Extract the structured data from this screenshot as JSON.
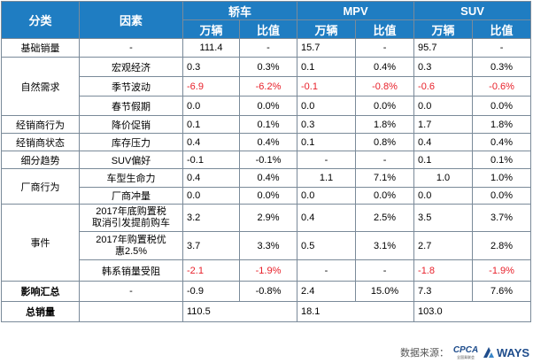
{
  "headers": {
    "category": "分类",
    "factor": "因素",
    "car": "轿车",
    "mpv": "MPV",
    "suv": "SUV",
    "sub_units": "万辆",
    "sub_ratio": "比值"
  },
  "rows": {
    "base": {
      "cat": "基础销量",
      "factor": "-",
      "car_u": "111.4",
      "car_r": "-",
      "mpv_u": "15.7",
      "mpv_r": "-",
      "suv_u": "95.7",
      "suv_r": "-"
    },
    "macro": {
      "factor": "宏观经济",
      "car_u": "0.3",
      "car_r": "0.3%",
      "mpv_u": "0.1",
      "mpv_r": "0.4%",
      "suv_u": "0.3",
      "suv_r": "0.3%"
    },
    "season": {
      "cat": "自然需求",
      "factor": "季节波动",
      "car_u": "-6.9",
      "car_r": "-6.2%",
      "mpv_u": "-0.1",
      "mpv_r": "-0.8%",
      "suv_u": "-0.6",
      "suv_r": "-0.6%"
    },
    "spring": {
      "factor": "春节假期",
      "car_u": "0.0",
      "car_r": "0.0%",
      "mpv_u": "0.0",
      "mpv_r": "0.0%",
      "suv_u": "0.0",
      "suv_r": "0.0%"
    },
    "promo": {
      "cat": "经销商行为",
      "factor": "降价促销",
      "car_u": "0.1",
      "car_r": "0.1%",
      "mpv_u": "0.3",
      "mpv_r": "1.8%",
      "suv_u": "1.7",
      "suv_r": "1.8%"
    },
    "inventory": {
      "cat": "经销商状态",
      "factor": "库存压力",
      "car_u": "0.4",
      "car_r": "0.4%",
      "mpv_u": "0.1",
      "mpv_r": "0.8%",
      "suv_u": "0.4",
      "suv_r": "0.4%"
    },
    "suvpref": {
      "cat": "细分趋势",
      "factor": "SUV偏好",
      "car_u": "-0.1",
      "car_r": "-0.1%",
      "mpv_u": "-",
      "mpv_r": "-",
      "suv_u": "0.1",
      "suv_r": "0.1%"
    },
    "lifecycle": {
      "cat": "厂商行为",
      "factor": "车型生命力",
      "car_u": "0.4",
      "car_r": "0.4%",
      "mpv_u": "1.1",
      "mpv_r": "7.1%",
      "suv_u": "1.0",
      "suv_r": "1.0%"
    },
    "push": {
      "factor": "厂商冲量",
      "car_u": "0.0",
      "car_r": "0.0%",
      "mpv_u": "0.0",
      "mpv_r": "0.0%",
      "suv_u": "0.0",
      "suv_r": "0.0%"
    },
    "tax_cancel": {
      "factor_l1": "2017年底购置税",
      "factor_l2": "取消引发提前购车",
      "car_u": "3.2",
      "car_r": "2.9%",
      "mpv_u": "0.4",
      "mpv_r": "2.5%",
      "suv_u": "3.5",
      "suv_r": "3.7%"
    },
    "tax_discount": {
      "cat": "事件",
      "factor_l1": "2017年购置税优",
      "factor_l2": "惠2.5%",
      "car_u": "3.7",
      "car_r": "3.3%",
      "mpv_u": "0.5",
      "mpv_r": "3.1%",
      "suv_u": "2.7",
      "suv_r": "2.8%"
    },
    "korean": {
      "factor": "韩系销量受阻",
      "car_u": "-2.1",
      "car_r": "-1.9%",
      "mpv_u": "-",
      "mpv_r": "-",
      "suv_u": "-1.8",
      "suv_r": "-1.9%"
    },
    "impact": {
      "cat": "影响汇总",
      "factor": "-",
      "car_u": "-0.9",
      "car_r": "-0.8%",
      "mpv_u": "2.4",
      "mpv_r": "15.0%",
      "suv_u": "7.3",
      "suv_r": "7.6%"
    },
    "total": {
      "cat": "总销量",
      "car_u": "110.5",
      "mpv_u": "18.1",
      "suv_u": "103.0"
    }
  },
  "footer": {
    "source_label": "数据来源：",
    "cpca_logo": "CPCA",
    "cpca_sub": "全国乘联会",
    "ways_logo": "WAYS"
  },
  "colors": {
    "header_bg": "#1f7dc2",
    "negative": "#e8202a",
    "border": "#7a8a99"
  }
}
